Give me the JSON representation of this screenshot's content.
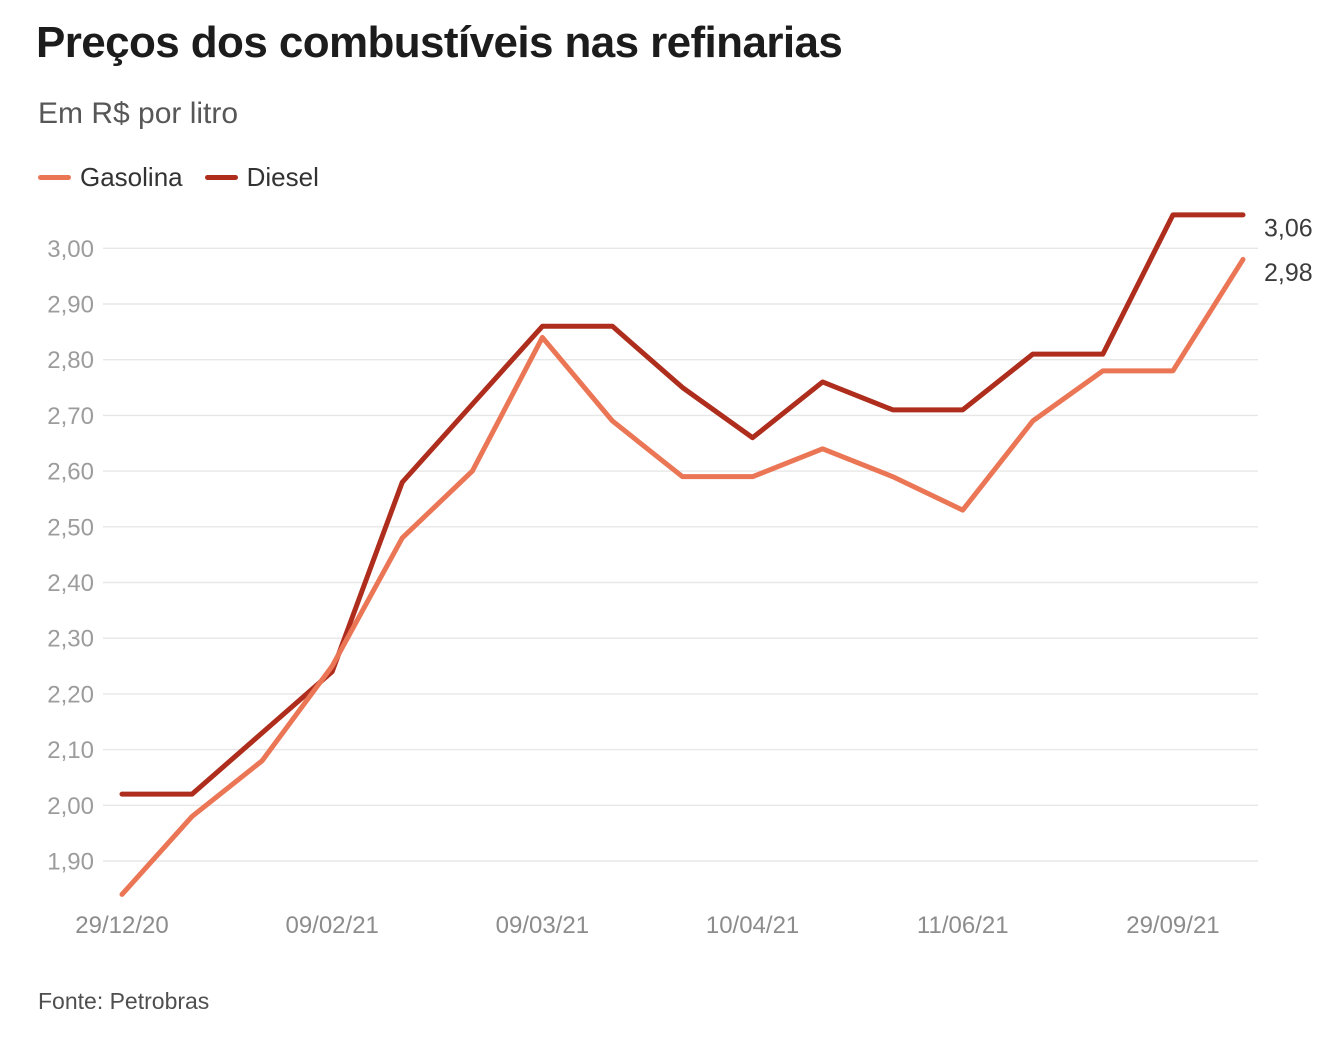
{
  "header": {
    "title": "Preços dos combustíveis nas refinarias",
    "subtitle": "Em R$ por litro"
  },
  "legend": [
    {
      "label": "Gasolina",
      "color": "#EB7656"
    },
    {
      "label": "Diesel",
      "color": "#AE2D1C"
    }
  ],
  "source": "Fonte: Petrobras",
  "chart_data": {
    "type": "line",
    "title": "Preços dos combustíveis nas refinarias",
    "subtitle": "Em R$ por litro",
    "x_tick_labels": [
      "29/12/20",
      "09/02/21",
      "09/03/21",
      "10/04/21",
      "11/06/21",
      "29/09/21"
    ],
    "x_tick_indices": [
      0,
      3,
      6,
      9,
      12,
      15
    ],
    "n_points": 17,
    "y_ticks": [
      1.9,
      2.0,
      2.1,
      2.2,
      2.3,
      2.4,
      2.5,
      2.6,
      2.7,
      2.8,
      2.9,
      3.0
    ],
    "y_tick_labels": [
      "1,90",
      "2,00",
      "2,10",
      "2,20",
      "2,30",
      "2,40",
      "2,50",
      "2,60",
      "2,70",
      "2,80",
      "2,90",
      "3,00"
    ],
    "ylim": [
      1.83,
      3.08
    ],
    "grid": "horizontal",
    "legend_position": "top-left",
    "series": [
      {
        "name": "Gasolina",
        "color": "#EB7656",
        "end_label": "2,98",
        "values": [
          1.84,
          1.98,
          2.08,
          2.25,
          2.48,
          2.6,
          2.84,
          2.69,
          2.59,
          2.59,
          2.64,
          2.59,
          2.53,
          2.69,
          2.78,
          2.78,
          2.98
        ]
      },
      {
        "name": "Diesel",
        "color": "#AE2D1C",
        "end_label": "3,06",
        "values": [
          2.02,
          2.02,
          2.13,
          2.24,
          2.58,
          2.72,
          2.86,
          2.86,
          2.75,
          2.66,
          2.76,
          2.71,
          2.71,
          2.81,
          2.81,
          3.06,
          3.06
        ]
      }
    ],
    "colors": {
      "grid": "#e7e7e7",
      "y_tick_text": "#9c9c9c",
      "x_tick_text": "#8c8c8c",
      "end_label_text": "#3c3c3c"
    }
  }
}
